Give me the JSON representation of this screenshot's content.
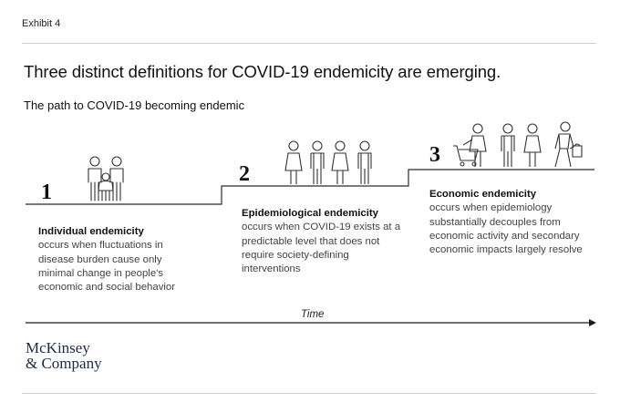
{
  "exhibit": "Exhibit 4",
  "title": "Three distinct definitions for COVID-19 endemicity are emerging.",
  "subtitle": "The path to COVID-19 becoming endemic",
  "stages": [
    {
      "number": "1",
      "heading": "Individual endemicity",
      "description": "occurs when fluctuations in disease burden cause only minimal change in people's economic and social behavior",
      "icons": [
        "family-icon"
      ]
    },
    {
      "number": "2",
      "heading": "Epidemiological endemicity",
      "description": "occurs when COVID-19 exists at a predictable level that does not require society-defining interventions",
      "icons": [
        "woman-icon",
        "man-icon",
        "woman-icon",
        "man-icon"
      ]
    },
    {
      "number": "3",
      "heading": "Economic endemicity",
      "description": "occurs when epidemiology substantially decouples from economic activity and secondary economic impacts largely resolve",
      "icons": [
        "shopper-with-cart-icon",
        "man-icon",
        "woman-icon",
        "person-with-shopping-bag-icon"
      ]
    }
  ],
  "axis_label": "Time",
  "logo": {
    "line1": "McKinsey",
    "line2": "& Company"
  },
  "colors": {
    "line": "#2b2b2b",
    "rule": "#cfcfcf",
    "text": "#444444",
    "logo": "#1c2a4a"
  }
}
